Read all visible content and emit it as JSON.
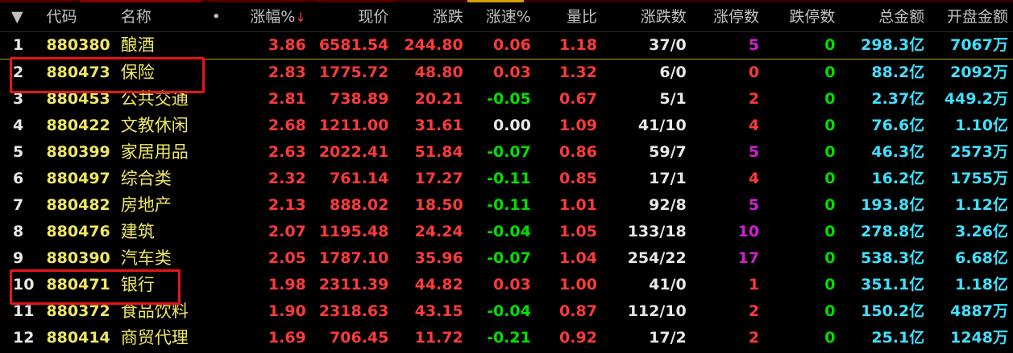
{
  "headers": {
    "idx": "▼",
    "code": "代码",
    "name": "名称",
    "dot": "•",
    "change_pct": "涨幅%",
    "sort_arrow": "↓",
    "price": "现价",
    "change": "涨跌",
    "speed": "涨速%",
    "vol_ratio": "量比",
    "updown": "涨跌数",
    "limit_up": "涨停数",
    "limit_down": "跌停数",
    "amount": "总金额",
    "open_amount": "开盘金额"
  },
  "rows": [
    {
      "idx": "1",
      "code": "880380",
      "name": "酿酒",
      "change_pct": "3.86",
      "price": "6581.54",
      "change": "244.80",
      "speed": "0.06",
      "speed_color": "red",
      "vol_ratio": "1.18",
      "updown": "37/0",
      "limit_up": "5",
      "limit_up_color": "purple",
      "limit_down": "0",
      "amount": "298.3亿",
      "open_amount": "7067万"
    },
    {
      "idx": "2",
      "code": "880473",
      "name": "保险",
      "change_pct": "2.83",
      "price": "1775.72",
      "change": "48.80",
      "speed": "0.03",
      "speed_color": "red",
      "vol_ratio": "1.32",
      "updown": "6/0",
      "limit_up": "0",
      "limit_up_color": "red",
      "limit_down": "0",
      "amount": "88.2亿",
      "open_amount": "2092万"
    },
    {
      "idx": "3",
      "code": "880453",
      "name": "公共交通",
      "change_pct": "2.81",
      "price": "738.89",
      "change": "20.21",
      "speed": "-0.05",
      "speed_color": "green",
      "vol_ratio": "0.67",
      "updown": "5/1",
      "limit_up": "2",
      "limit_up_color": "red",
      "limit_down": "0",
      "amount": "2.37亿",
      "open_amount": "449.2万"
    },
    {
      "idx": "4",
      "code": "880422",
      "name": "文教休闲",
      "change_pct": "2.68",
      "price": "1211.00",
      "change": "31.61",
      "speed": "0.00",
      "speed_color": "white",
      "vol_ratio": "1.09",
      "updown": "41/10",
      "limit_up": "4",
      "limit_up_color": "red",
      "limit_down": "0",
      "amount": "76.6亿",
      "open_amount": "1.10亿"
    },
    {
      "idx": "5",
      "code": "880399",
      "name": "家居用品",
      "change_pct": "2.63",
      "price": "2022.41",
      "change": "51.84",
      "speed": "-0.07",
      "speed_color": "green",
      "vol_ratio": "0.86",
      "updown": "59/7",
      "limit_up": "5",
      "limit_up_color": "purple",
      "limit_down": "0",
      "amount": "46.3亿",
      "open_amount": "2573万"
    },
    {
      "idx": "6",
      "code": "880497",
      "name": "综合类",
      "change_pct": "2.32",
      "price": "761.14",
      "change": "17.27",
      "speed": "-0.11",
      "speed_color": "green",
      "vol_ratio": "0.85",
      "updown": "17/1",
      "limit_up": "4",
      "limit_up_color": "red",
      "limit_down": "0",
      "amount": "16.2亿",
      "open_amount": "1755万"
    },
    {
      "idx": "7",
      "code": "880482",
      "name": "房地产",
      "change_pct": "2.13",
      "price": "888.02",
      "change": "18.50",
      "speed": "-0.11",
      "speed_color": "green",
      "vol_ratio": "1.01",
      "updown": "92/8",
      "limit_up": "5",
      "limit_up_color": "purple",
      "limit_down": "0",
      "amount": "193.8亿",
      "open_amount": "1.12亿"
    },
    {
      "idx": "8",
      "code": "880476",
      "name": "建筑",
      "change_pct": "2.07",
      "price": "1195.48",
      "change": "24.24",
      "speed": "-0.04",
      "speed_color": "green",
      "vol_ratio": "1.05",
      "updown": "133/18",
      "limit_up": "10",
      "limit_up_color": "purple",
      "limit_down": "0",
      "amount": "278.8亿",
      "open_amount": "3.26亿"
    },
    {
      "idx": "9",
      "code": "880390",
      "name": "汽车类",
      "change_pct": "2.05",
      "price": "1787.10",
      "change": "35.96",
      "speed": "-0.07",
      "speed_color": "green",
      "vol_ratio": "1.04",
      "updown": "254/22",
      "limit_up": "17",
      "limit_up_color": "purple",
      "limit_down": "0",
      "amount": "538.3亿",
      "open_amount": "6.68亿"
    },
    {
      "idx": "10",
      "code": "880471",
      "name": "银行",
      "change_pct": "1.98",
      "price": "2311.39",
      "change": "44.82",
      "speed": "0.03",
      "speed_color": "red",
      "vol_ratio": "1.00",
      "updown": "41/0",
      "limit_up": "1",
      "limit_up_color": "red",
      "limit_down": "0",
      "amount": "351.1亿",
      "open_amount": "1.18亿"
    },
    {
      "idx": "11",
      "code": "880372",
      "name": "食品饮料",
      "change_pct": "1.90",
      "price": "2318.63",
      "change": "43.15",
      "speed": "-0.04",
      "speed_color": "green",
      "vol_ratio": "0.87",
      "updown": "112/10",
      "limit_up": "2",
      "limit_up_color": "red",
      "limit_down": "0",
      "amount": "150.2亿",
      "open_amount": "4887万"
    },
    {
      "idx": "12",
      "code": "880414",
      "name": "商贸代理",
      "change_pct": "1.69",
      "price": "706.45",
      "change": "11.72",
      "speed": "-0.21",
      "speed_color": "green",
      "vol_ratio": "0.92",
      "updown": "17/2",
      "limit_up": "2",
      "limit_up_color": "red",
      "limit_down": "0",
      "amount": "25.1亿",
      "open_amount": "1248万"
    }
  ],
  "colors": {
    "up": "#ff3a3a",
    "down": "#00e000",
    "flat": "#e8e8e8",
    "code_name": "#f0e860",
    "limit_up_strong": "#d020d0",
    "amount": "#40e0ff",
    "highlight_box": "#e8141a"
  }
}
